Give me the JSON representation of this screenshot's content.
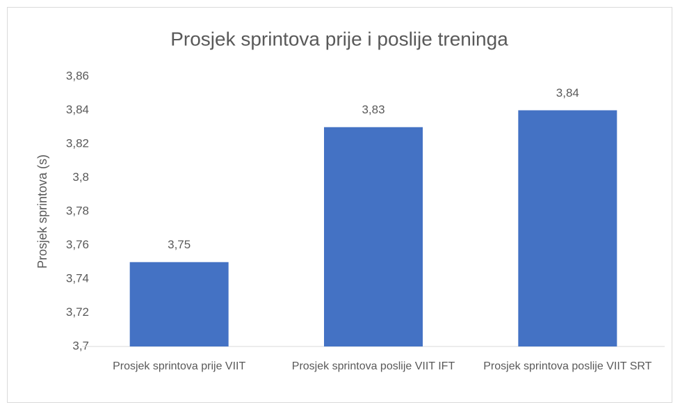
{
  "chart_data": {
    "type": "bar",
    "title": "Prosjek sprintova prije i poslije treninga",
    "y_label": "Prosjek sprintova (s)",
    "categories": [
      "Prosjek sprintova prije VIIT",
      "Prosjek sprintova poslije VIIT IFT",
      "Prosjek sprintova poslije VIIT SRT"
    ],
    "values": [
      3.75,
      3.83,
      3.84
    ],
    "value_labels": [
      "3,75",
      "3,83",
      "3,84"
    ],
    "color": "#4472c4",
    "ylim": [
      3.7,
      3.86
    ],
    "yticks": [
      {
        "value": 3.7,
        "label": "3,7"
      },
      {
        "value": 3.72,
        "label": "3,72"
      },
      {
        "value": 3.74,
        "label": "3,74"
      },
      {
        "value": 3.76,
        "label": "3,76"
      },
      {
        "value": 3.78,
        "label": "3,78"
      },
      {
        "value": 3.8,
        "label": "3,8"
      },
      {
        "value": 3.82,
        "label": "3,82"
      },
      {
        "value": 3.84,
        "label": "3,84"
      },
      {
        "value": 3.86,
        "label": "3,86"
      }
    ],
    "grid": false
  }
}
